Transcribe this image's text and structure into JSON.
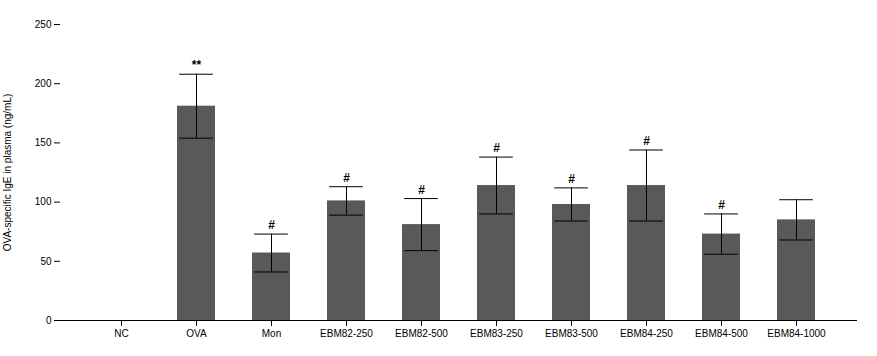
{
  "chart_data": {
    "type": "bar",
    "categories": [
      "NC",
      "OVA",
      "Mon",
      "EBM82-250",
      "EBM82-500",
      "EBM83-250",
      "EBM83-500",
      "EBM84-250",
      "EBM84-500",
      "EBM84-1000"
    ],
    "values": [
      0,
      181,
      57,
      101,
      81,
      114,
      98,
      114,
      73,
      85
    ],
    "errors": [
      0,
      27,
      16,
      12,
      22,
      24,
      14,
      30,
      17,
      17
    ],
    "color": "#595959",
    "ylabel": "OVA-specific IgE in plasma (ng/mL)",
    "ylim": [
      0,
      250
    ],
    "yticks": [
      0,
      50,
      100,
      150,
      200,
      250
    ],
    "annotations": {
      "OVA": "**",
      "Mon": "#",
      "EBM82-250": "#",
      "EBM82-500": "#",
      "EBM83-250": "#",
      "EBM83-500": "#",
      "EBM84-250": "#",
      "EBM84-500": "#"
    },
    "grid": false
  }
}
